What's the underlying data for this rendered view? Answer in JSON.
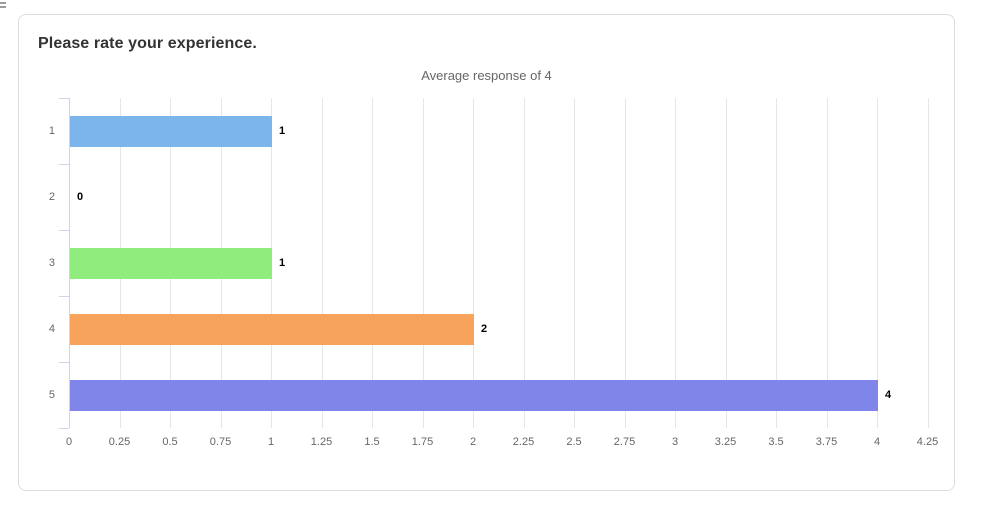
{
  "screen": {
    "edge_artifact": "clipped-ui-fragment-top-left"
  },
  "card": {
    "title": "Please rate your experience."
  },
  "chart_data": {
    "type": "bar",
    "orientation": "horizontal",
    "title": "Average response of 4",
    "categories": [
      "1",
      "2",
      "3",
      "4",
      "5"
    ],
    "values": [
      1,
      0,
      1,
      2,
      4
    ],
    "data_labels": [
      "1",
      "0",
      "1",
      "2",
      "4"
    ],
    "bar_colors": [
      "#7cb5ec",
      "#434348",
      "#90ed7d",
      "#f7a35c",
      "#8085e9"
    ],
    "xlabel": "",
    "ylabel": "",
    "xlim": [
      0,
      4.25
    ],
    "tick_interval": 0.25,
    "x_ticks": [
      "0",
      "0.25",
      "0.5",
      "0.75",
      "1",
      "1.25",
      "1.5",
      "1.75",
      "2",
      "2.25",
      "2.5",
      "2.75",
      "3",
      "3.25",
      "3.5",
      "3.75",
      "4",
      "4.25"
    ],
    "grid": "vertical",
    "legend": "none",
    "average": 4
  },
  "colors": {
    "bar_blue": "#7cb5ec",
    "bar_dark": "#434348",
    "bar_green": "#90ed7d",
    "bar_orange": "#f7a35c",
    "bar_purple": "#8085e9",
    "gridline": "#e6e6e6",
    "axis_line": "#ccd6eb",
    "axis_label_text": "#666666",
    "chart_title_text": "#666666",
    "card_title_text": "#333333",
    "card_border": "#dddddd",
    "data_label_text": "#000000"
  }
}
